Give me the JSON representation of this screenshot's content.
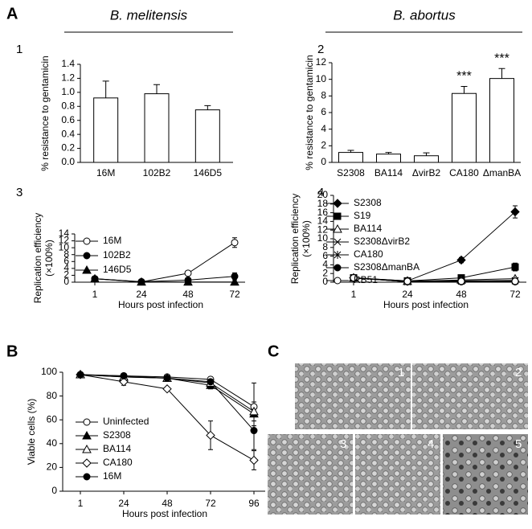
{
  "figure": {
    "panel_letters": [
      "A",
      "B",
      "C"
    ],
    "species": [
      "B. melitensis",
      "B. abortus"
    ],
    "micrograph_labels": [
      "1",
      "2",
      "3",
      "4",
      "5"
    ]
  },
  "chart_data": [
    {
      "type": "bar",
      "panel": "1",
      "ylabel": "% resistance to gentamicin",
      "categories": [
        "16M",
        "102B2",
        "146D5"
      ],
      "values": [
        0.92,
        0.98,
        0.75
      ],
      "errors": [
        0.24,
        0.13,
        0.06
      ],
      "color": "#ffffff",
      "ylim": [
        0,
        1.4
      ],
      "yticks": [
        {
          "value": 0,
          "label": "0.0"
        },
        0.2,
        0.4,
        0.6,
        0.8,
        {
          "value": 1,
          "label": "1.0"
        },
        1.2,
        1.4
      ]
    },
    {
      "type": "bar",
      "panel": "2",
      "ylabel": "% resistance to gentamicin",
      "categories": [
        "S2308",
        "BA114",
        "ΔvirB2",
        "CA180",
        "ΔmanBA"
      ],
      "values": [
        1.2,
        1.0,
        0.8,
        8.3,
        10.1
      ],
      "errors": [
        0.25,
        0.2,
        0.35,
        0.85,
        1.2
      ],
      "color": "#ffffff",
      "annotations": [
        {
          "text": "***",
          "category": "CA180"
        },
        {
          "text": "***",
          "category": "ΔmanBA"
        }
      ],
      "ylim": [
        0,
        12
      ],
      "yticks": [
        0,
        2,
        4,
        6,
        8,
        10,
        12
      ]
    },
    {
      "type": "line",
      "panel": "3",
      "ylabel": [
        "Replication efficiency",
        "(×100%)"
      ],
      "xlabel": "Hours post infection",
      "categories": [
        "1",
        "24",
        "48",
        "72"
      ],
      "ylim": [
        0,
        14
      ],
      "yticks": [
        0,
        2,
        4,
        6,
        8,
        10,
        12,
        14
      ],
      "series": [
        {
          "name": "16M",
          "color": "#000000",
          "marker": "open-circle",
          "values": [
            1,
            0.1,
            2.6,
            11.5
          ],
          "errors": [
            null,
            null,
            null,
            1.4
          ]
        },
        {
          "name": "102B2",
          "color": "#000000",
          "marker": "filled-circle",
          "values": [
            1,
            0.15,
            0.6,
            1.7
          ],
          "errors": [
            null,
            null,
            0.3,
            1.0
          ]
        },
        {
          "name": "146D5",
          "color": "#000000",
          "marker": "filled-triangle",
          "values": [
            1,
            0.05,
            0.05,
            0.05
          ],
          "errors": [
            null,
            null,
            null,
            null
          ]
        }
      ]
    },
    {
      "type": "line",
      "panel": "4",
      "ylabel": [
        "Replication efficiency",
        "(×100%)"
      ],
      "xlabel": "Hours post infection",
      "categories": [
        "1",
        "24",
        "48",
        "72"
      ],
      "ylim": [
        0,
        20
      ],
      "yticks": [
        0,
        2,
        4,
        6,
        8,
        10,
        12,
        14,
        16,
        18,
        20
      ],
      "series": [
        {
          "name": "S2308",
          "color": "#000000",
          "marker": "filled-diamond",
          "values": [
            1,
            0.3,
            5.1,
            16.2
          ],
          "errors": [
            null,
            null,
            0.6,
            1.4
          ]
        },
        {
          "name": "S19",
          "color": "#000000",
          "marker": "filled-square",
          "values": [
            1,
            0.3,
            1.0,
            3.5
          ],
          "errors": [
            null,
            null,
            null,
            0.9
          ]
        },
        {
          "name": "BA114",
          "color": "#000000",
          "marker": "open-triangle",
          "values": [
            1,
            0.2,
            0.5,
            0.8
          ],
          "errors": [
            null,
            null,
            null,
            null
          ]
        },
        {
          "name": "S2308ΔvirB2",
          "color": "#000000",
          "marker": "x",
          "values": [
            1,
            0.1,
            0.3,
            0.4
          ],
          "errors": [
            null,
            null,
            null,
            null
          ]
        },
        {
          "name": "CA180",
          "color": "#000000",
          "marker": "star",
          "values": [
            1,
            0.1,
            0.2,
            0.3
          ],
          "errors": [
            null,
            null,
            null,
            null
          ]
        },
        {
          "name": "S2308ΔmanBA",
          "color": "#000000",
          "marker": "filled-circle",
          "values": [
            1,
            0.1,
            0.1,
            0.1
          ],
          "errors": [
            null,
            null,
            null,
            null
          ]
        },
        {
          "name": "RB51",
          "color": "#000000",
          "marker": "open-circle",
          "values": [
            1,
            0.2,
            0.2,
            0.2
          ],
          "errors": [
            null,
            null,
            null,
            null
          ]
        }
      ]
    },
    {
      "type": "line",
      "ylabel": "Viable cells (%)",
      "xlabel": "Hours post infection",
      "categories": [
        "1",
        "24",
        "48",
        "72",
        "96"
      ],
      "ylim": [
        0,
        100
      ],
      "yticks": [
        0,
        20,
        40,
        60,
        80,
        100
      ],
      "series": [
        {
          "name": "Uninfected",
          "color": "#000000",
          "marker": "open-circle",
          "values": [
            98,
            97,
            96,
            94,
            71
          ],
          "errors": [
            null,
            null,
            null,
            2,
            20
          ]
        },
        {
          "name": "S2308",
          "color": "#000000",
          "marker": "filled-triangle",
          "values": [
            98,
            96,
            95,
            89,
            65
          ],
          "errors": [
            null,
            null,
            null,
            3,
            10
          ]
        },
        {
          "name": "BA114",
          "color": "#000000",
          "marker": "open-triangle",
          "values": [
            98,
            96,
            95,
            91,
            67
          ],
          "errors": [
            null,
            null,
            null,
            3,
            8
          ]
        },
        {
          "name": "CA180",
          "color": "#000000",
          "marker": "open-diamond",
          "values": [
            98,
            92,
            86,
            47,
            26
          ],
          "errors": [
            null,
            3,
            null,
            12,
            8
          ]
        },
        {
          "name": "16M",
          "color": "#000000",
          "marker": "filled-circle",
          "values": [
            98,
            97,
            95,
            92,
            51
          ],
          "errors": [
            null,
            null,
            null,
            2,
            16
          ]
        }
      ]
    }
  ]
}
